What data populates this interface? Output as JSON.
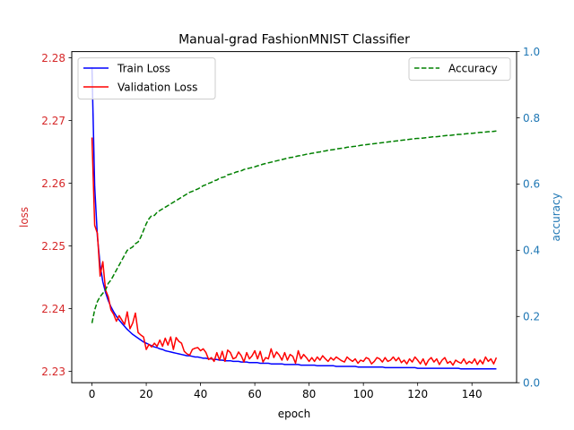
{
  "chart_data": {
    "type": "line",
    "title": "Manual-grad FashionMNIST Classifier",
    "xlabel": "epoch",
    "ylabel_left": "loss",
    "ylabel_right": "accuracy",
    "xlim": [
      -7.45,
      156.45
    ],
    "ylim_left": [
      2.2282,
      2.281
    ],
    "ylim_right": [
      0.0,
      1.0
    ],
    "x_ticks": [
      0,
      20,
      40,
      60,
      80,
      100,
      120,
      140
    ],
    "x_tick_labels": [
      "0",
      "20",
      "40",
      "60",
      "80",
      "100",
      "120",
      "140"
    ],
    "y_left_ticks": [
      2.23,
      2.24,
      2.25,
      2.26,
      2.27,
      2.28
    ],
    "y_left_tick_labels": [
      "2.23",
      "2.24",
      "2.25",
      "2.26",
      "2.27",
      "2.28"
    ],
    "y_right_ticks": [
      0.0,
      0.2,
      0.4,
      0.6,
      0.8,
      1.0
    ],
    "y_right_tick_labels": [
      "0.0",
      "0.2",
      "0.4",
      "0.6",
      "0.8",
      "1.0"
    ],
    "legend_left_position": "upper-left",
    "legend_right_position": "upper-right",
    "grid": false,
    "colors": {
      "train": "#0000ff",
      "validation": "#ff0000",
      "accuracy": "#008000",
      "left_axis": "#d62728",
      "right_axis": "#1f77b4"
    },
    "x": [
      0,
      1,
      2,
      3,
      4,
      5,
      6,
      7,
      8,
      9,
      10,
      11,
      12,
      13,
      14,
      15,
      16,
      17,
      18,
      19,
      20,
      21,
      22,
      23,
      24,
      25,
      26,
      27,
      28,
      29,
      30,
      31,
      32,
      33,
      34,
      35,
      36,
      37,
      38,
      39,
      40,
      41,
      42,
      43,
      44,
      45,
      46,
      47,
      48,
      49,
      50,
      51,
      52,
      53,
      54,
      55,
      56,
      57,
      58,
      59,
      60,
      61,
      62,
      63,
      64,
      65,
      66,
      67,
      68,
      69,
      70,
      71,
      72,
      73,
      74,
      75,
      76,
      77,
      78,
      79,
      80,
      81,
      82,
      83,
      84,
      85,
      86,
      87,
      88,
      89,
      90,
      91,
      92,
      93,
      94,
      95,
      96,
      97,
      98,
      99,
      100,
      101,
      102,
      103,
      104,
      105,
      106,
      107,
      108,
      109,
      110,
      111,
      112,
      113,
      114,
      115,
      116,
      117,
      118,
      119,
      120,
      121,
      122,
      123,
      124,
      125,
      126,
      127,
      128,
      129,
      130,
      131,
      132,
      133,
      134,
      135,
      136,
      137,
      138,
      139,
      140,
      141,
      142,
      143,
      144,
      145,
      146,
      147,
      148,
      149
    ],
    "series": [
      {
        "name": "Train Loss",
        "axis": "left",
        "style": "solid",
        "values": [
          2.2785,
          2.2595,
          2.2515,
          2.247,
          2.2443,
          2.2426,
          2.2413,
          2.2403,
          2.2395,
          2.2388,
          2.2382,
          2.2377,
          2.2372,
          2.2367,
          2.2363,
          2.2359,
          2.2356,
          2.2353,
          2.235,
          2.2347,
          2.2345,
          2.2343,
          2.2341,
          2.2339,
          2.2338,
          2.2336,
          2.2335,
          2.2333,
          2.2332,
          2.2331,
          2.233,
          2.2329,
          2.2328,
          2.2327,
          2.2326,
          2.2325,
          2.2325,
          2.2324,
          2.2323,
          2.2323,
          2.2322,
          2.2321,
          2.2321,
          2.232,
          2.232,
          2.2319,
          2.2319,
          2.2318,
          2.2318,
          2.2317,
          2.2317,
          2.2317,
          2.2316,
          2.2316,
          2.2316,
          2.2315,
          2.2315,
          2.2315,
          2.2314,
          2.2314,
          2.2314,
          2.2314,
          2.2313,
          2.2313,
          2.2313,
          2.2313,
          2.2312,
          2.2312,
          2.2312,
          2.2312,
          2.2312,
          2.2311,
          2.2311,
          2.2311,
          2.2311,
          2.2311,
          2.2311,
          2.231,
          2.231,
          2.231,
          2.231,
          2.231,
          2.231,
          2.2309,
          2.2309,
          2.2309,
          2.2309,
          2.2309,
          2.2309,
          2.2309,
          2.2308,
          2.2308,
          2.2308,
          2.2308,
          2.2308,
          2.2308,
          2.2308,
          2.2308,
          2.2307,
          2.2307,
          2.2307,
          2.2307,
          2.2307,
          2.2307,
          2.2307,
          2.2307,
          2.2307,
          2.2307,
          2.2306,
          2.2306,
          2.2306,
          2.2306,
          2.2306,
          2.2306,
          2.2306,
          2.2306,
          2.2306,
          2.2306,
          2.2306,
          2.2306,
          2.2305,
          2.2305,
          2.2305,
          2.2305,
          2.2305,
          2.2305,
          2.2305,
          2.2305,
          2.2305,
          2.2305,
          2.2305,
          2.2305,
          2.2305,
          2.2305,
          2.2305,
          2.2305,
          2.2304,
          2.2304,
          2.2304,
          2.2304,
          2.2304,
          2.2304,
          2.2304,
          2.2304,
          2.2304,
          2.2304,
          2.2304,
          2.2304,
          2.2304,
          2.2304
        ]
      },
      {
        "name": "Validation Loss",
        "axis": "left",
        "style": "solid",
        "values": [
          2.2673,
          2.2533,
          2.252,
          2.2452,
          2.2475,
          2.243,
          2.2419,
          2.2398,
          2.2391,
          2.238,
          2.2389,
          2.2382,
          2.2375,
          2.2395,
          2.2368,
          2.2377,
          2.2393,
          2.2362,
          2.2358,
          2.2355,
          2.2335,
          2.2343,
          2.2339,
          2.2345,
          2.234,
          2.235,
          2.234,
          2.2353,
          2.2342,
          2.2355,
          2.2335,
          2.2354,
          2.2348,
          2.2345,
          2.2332,
          2.2328,
          2.2326,
          2.2335,
          2.2337,
          2.2338,
          2.2333,
          2.2336,
          2.233,
          2.2319,
          2.2322,
          2.2316,
          2.233,
          2.2318,
          2.2332,
          2.2316,
          2.2334,
          2.233,
          2.232,
          2.2322,
          2.2331,
          2.2325,
          2.2315,
          2.233,
          2.232,
          2.2325,
          2.2333,
          2.232,
          2.2332,
          2.2315,
          2.2322,
          2.232,
          2.2336,
          2.2322,
          2.2331,
          2.2326,
          2.2318,
          2.233,
          2.2318,
          2.2327,
          2.2324,
          2.2313,
          2.2333,
          2.232,
          2.2327,
          2.2322,
          2.2316,
          2.2322,
          2.2316,
          2.2323,
          2.2318,
          2.2325,
          2.232,
          2.2316,
          2.2322,
          2.2318,
          2.2323,
          2.232,
          2.2317,
          2.2315,
          2.2323,
          2.2319,
          2.2316,
          2.232,
          2.2313,
          2.2318,
          2.2316,
          2.2322,
          2.232,
          2.2312,
          2.2316,
          2.2322,
          2.232,
          2.2315,
          2.2322,
          2.2316,
          2.2318,
          2.2323,
          2.2317,
          2.2322,
          2.2314,
          2.2318,
          2.2312,
          2.232,
          2.2315,
          2.2323,
          2.2318,
          2.2312,
          2.232,
          2.231,
          2.2318,
          2.2322,
          2.2315,
          2.232,
          2.2311,
          2.2318,
          2.2322,
          2.2313,
          2.2316,
          2.231,
          2.2318,
          2.2315,
          2.2313,
          2.232,
          2.2312,
          2.2316,
          2.2313,
          2.232,
          2.2311,
          2.2318,
          2.2312,
          2.2323,
          2.2316,
          2.232,
          2.2312,
          2.2322
        ]
      },
      {
        "name": "Accuracy",
        "axis": "right",
        "style": "dashed",
        "values": [
          0.18,
          0.22,
          0.245,
          0.26,
          0.27,
          0.28,
          0.3,
          0.31,
          0.325,
          0.34,
          0.355,
          0.37,
          0.385,
          0.4,
          0.405,
          0.41,
          0.42,
          0.425,
          0.44,
          0.46,
          0.48,
          0.495,
          0.505,
          0.505,
          0.515,
          0.52,
          0.525,
          0.53,
          0.535,
          0.54,
          0.545,
          0.55,
          0.555,
          0.56,
          0.565,
          0.57,
          0.575,
          0.578,
          0.582,
          0.585,
          0.59,
          0.595,
          0.598,
          0.602,
          0.605,
          0.61,
          0.612,
          0.618,
          0.62,
          0.622,
          0.628,
          0.63,
          0.632,
          0.636,
          0.638,
          0.64,
          0.644,
          0.646,
          0.648,
          0.65,
          0.652,
          0.655,
          0.657,
          0.66,
          0.662,
          0.664,
          0.666,
          0.668,
          0.67,
          0.672,
          0.674,
          0.676,
          0.678,
          0.68,
          0.681,
          0.683,
          0.685,
          0.686,
          0.688,
          0.69,
          0.691,
          0.693,
          0.694,
          0.696,
          0.697,
          0.699,
          0.7,
          0.702,
          0.703,
          0.704,
          0.706,
          0.707,
          0.708,
          0.709,
          0.711,
          0.712,
          0.713,
          0.714,
          0.715,
          0.717,
          0.718,
          0.719,
          0.72,
          0.721,
          0.722,
          0.723,
          0.724,
          0.725,
          0.726,
          0.727,
          0.728,
          0.729,
          0.73,
          0.731,
          0.732,
          0.733,
          0.734,
          0.735,
          0.736,
          0.737,
          0.738,
          0.738,
          0.739,
          0.74,
          0.741,
          0.742,
          0.743,
          0.743,
          0.744,
          0.745,
          0.746,
          0.747,
          0.747,
          0.748,
          0.749,
          0.75,
          0.75,
          0.751,
          0.752,
          0.753,
          0.753,
          0.754,
          0.755,
          0.756,
          0.756,
          0.757,
          0.758,
          0.758,
          0.759,
          0.76
        ]
      }
    ]
  }
}
